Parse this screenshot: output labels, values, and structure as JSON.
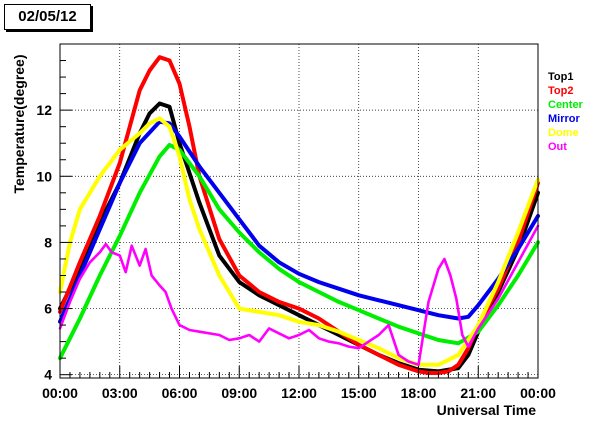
{
  "date_label": "02/05/12",
  "chart_data": {
    "type": "line",
    "title": "",
    "xlabel": "Universal Time",
    "ylabel": "Temperature(degree)",
    "xlim": [
      0,
      24
    ],
    "ylim": [
      3.9,
      14
    ],
    "x_ticks": [
      "00:00",
      "03:00",
      "06:00",
      "09:00",
      "12:00",
      "15:00",
      "18:00",
      "21:00",
      "00:00"
    ],
    "y_ticks": [
      4,
      6,
      8,
      10,
      12
    ],
    "grid": true,
    "legend_position": "right",
    "series": [
      {
        "name": "Top1",
        "color": "#000000",
        "x": [
          0,
          1,
          2,
          3,
          4,
          4.5,
          5,
          5.5,
          6,
          7,
          8,
          9,
          10,
          11,
          12,
          13,
          14,
          15,
          16,
          17,
          18,
          19,
          20,
          20.5,
          21,
          22,
          23,
          24
        ],
        "y": [
          6,
          7.2,
          8.6,
          9.8,
          11.3,
          11.9,
          12.2,
          12.1,
          11,
          9.2,
          7.6,
          6.8,
          6.4,
          6.1,
          5.8,
          5.5,
          5.2,
          4.9,
          4.6,
          4.35,
          4.15,
          4.1,
          4.2,
          4.6,
          5.3,
          6.5,
          7.8,
          9.5
        ]
      },
      {
        "name": "Top2",
        "color": "#ff0000",
        "x": [
          0,
          1,
          2,
          3,
          4,
          4.5,
          5,
          5.5,
          6,
          6.5,
          7,
          8,
          9,
          10,
          11,
          12,
          13,
          14,
          15,
          16,
          17,
          18,
          18.5,
          19,
          19.5,
          20,
          20.5,
          21,
          22,
          23,
          24
        ],
        "y": [
          5.9,
          7.4,
          8.8,
          10.4,
          12.6,
          13.2,
          13.6,
          13.5,
          12.8,
          11.5,
          10,
          8.1,
          7,
          6.5,
          6.2,
          6,
          5.7,
          5.3,
          4.9,
          4.6,
          4.3,
          4.1,
          4.05,
          4.05,
          4.1,
          4.3,
          4.8,
          5.5,
          6.6,
          8,
          9.8
        ]
      },
      {
        "name": "Center",
        "color": "#00ee00",
        "x": [
          0,
          1,
          2,
          3,
          4,
          5,
          5.5,
          6,
          7,
          8,
          9,
          10,
          11,
          12,
          13,
          14,
          15,
          16,
          17,
          18,
          19,
          20,
          21,
          22,
          23,
          24
        ],
        "y": [
          4.5,
          5.7,
          7,
          8.2,
          9.5,
          10.6,
          10.95,
          10.8,
          10,
          9,
          8.3,
          7.7,
          7.2,
          6.8,
          6.5,
          6.2,
          5.95,
          5.7,
          5.45,
          5.25,
          5.05,
          4.95,
          5.3,
          6.1,
          7,
          8
        ]
      },
      {
        "name": "Mirror",
        "color": "#0000ee",
        "x": [
          0,
          1,
          2,
          3,
          4,
          5,
          5.5,
          6,
          7,
          8,
          9,
          10,
          11,
          12,
          13,
          14,
          15,
          16,
          17,
          18,
          19,
          20,
          20.5,
          21,
          22,
          23,
          24
        ],
        "y": [
          5.6,
          7,
          8.4,
          9.8,
          11,
          11.65,
          11.6,
          11.2,
          10.3,
          9.5,
          8.7,
          7.9,
          7.4,
          7.05,
          6.8,
          6.6,
          6.4,
          6.25,
          6.1,
          5.95,
          5.8,
          5.7,
          5.75,
          6.1,
          6.9,
          7.8,
          8.8
        ]
      },
      {
        "name": "Dome",
        "color": "#ffff00",
        "x": [
          0,
          0.5,
          1,
          2,
          3,
          4,
          4.5,
          5,
          5.5,
          6,
          6.5,
          7,
          8,
          9,
          10,
          11,
          12,
          13,
          14,
          15,
          16,
          17,
          18,
          19,
          20,
          21,
          22,
          23,
          24
        ],
        "y": [
          6.5,
          8,
          9,
          10,
          10.8,
          11.3,
          11.6,
          11.75,
          11.5,
          10.6,
          9.3,
          8.4,
          7,
          6,
          5.9,
          5.8,
          5.6,
          5.5,
          5.3,
          5.05,
          4.8,
          4.5,
          4.3,
          4.3,
          4.6,
          5.5,
          6.8,
          8.3,
          9.9
        ]
      },
      {
        "name": "Out",
        "color": "#ff00ff",
        "x": [
          0,
          0.5,
          1,
          1.5,
          2,
          2.3,
          2.6,
          3,
          3.3,
          3.6,
          4,
          4.3,
          4.6,
          5,
          5.3,
          5.6,
          6,
          6.5,
          7,
          8,
          8.5,
          9,
          9.5,
          10,
          10.5,
          11,
          11.5,
          12,
          12.5,
          13,
          13.5,
          14,
          14.5,
          15,
          15.5,
          16,
          16.5,
          17,
          17.5,
          18,
          18.5,
          19,
          19.3,
          19.6,
          19.9,
          20.2,
          20.5,
          21,
          22,
          23,
          24
        ],
        "y": [
          5.4,
          6.2,
          6.9,
          7.4,
          7.7,
          7.95,
          7.7,
          7.6,
          7.1,
          7.9,
          7.3,
          7.8,
          7,
          6.7,
          6.5,
          6,
          5.5,
          5.35,
          5.3,
          5.2,
          5.05,
          5.1,
          5.2,
          5,
          5.4,
          5.25,
          5.1,
          5.2,
          5.35,
          5.1,
          5.0,
          4.95,
          4.85,
          4.8,
          5.0,
          5.2,
          5.5,
          4.6,
          4.4,
          4.3,
          6.2,
          7.2,
          7.5,
          7.0,
          6.3,
          5.2,
          4.85,
          5.4,
          6.3,
          7.4,
          8.5
        ]
      }
    ]
  }
}
